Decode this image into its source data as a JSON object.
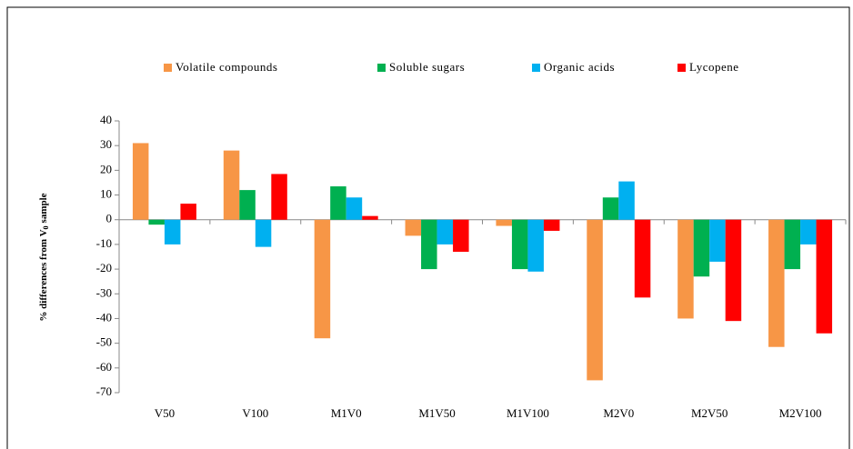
{
  "chart_data": {
    "type": "bar",
    "ylabel": {
      "text": "% differences from V",
      "subscript": "0",
      "after": "sample"
    },
    "categories": [
      "V50",
      "V100",
      "M1V0",
      "M1V50",
      "M1V100",
      "M2V0",
      "M2V50",
      "M2V100"
    ],
    "series": [
      {
        "name": "Volatile compounds",
        "color": "#f79646",
        "values": [
          31,
          28,
          -48,
          -6.5,
          -2.5,
          -65,
          -40,
          -51.5
        ]
      },
      {
        "name": "Soluble sugars",
        "color": "#00b050",
        "values": [
          -2,
          12,
          13.5,
          -20,
          -20,
          9,
          -23,
          -20
        ]
      },
      {
        "name": "Organic acids",
        "color": "#00b0f0",
        "values": [
          -10,
          -11,
          9,
          -10,
          -21,
          15.5,
          -17,
          -10
        ]
      },
      {
        "name": "Lycopene",
        "color": "#ff0000",
        "values": [
          6.5,
          18.5,
          1.5,
          -13,
          -4.5,
          -31.5,
          -41,
          -46
        ]
      }
    ],
    "ylim": [
      -70,
      40
    ],
    "yticks": [
      -70,
      -60,
      -50,
      -40,
      -30,
      -20,
      -10,
      0,
      10,
      20,
      30,
      40
    ],
    "legend": "top",
    "grid": false
  }
}
